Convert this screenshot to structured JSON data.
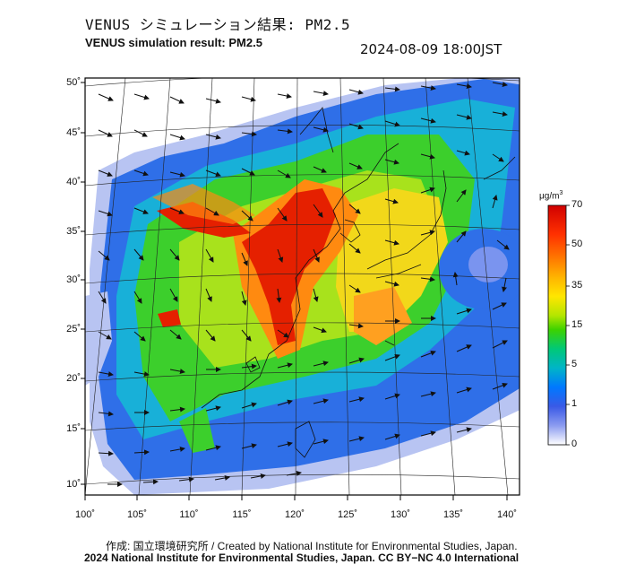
{
  "header": {
    "title_jp": "VENUS シミュレーション結果: PM2.5",
    "title_en": "VENUS simulation result: PM2.5",
    "timestamp": "2024-08-09 18:00JST"
  },
  "map": {
    "lat_labels": [
      "50˚",
      "45˚",
      "40˚",
      "35˚",
      "30˚",
      "25˚",
      "20˚",
      "15˚",
      "10˚"
    ],
    "lon_labels": [
      "100˚",
      "105˚",
      "110˚",
      "115˚",
      "120˚",
      "125˚",
      "130˚",
      "135˚",
      "140˚"
    ],
    "features": [
      "PM2.5 concentration field",
      "wind vectors",
      "coastlines",
      "lat/lon graticule"
    ]
  },
  "colorbar": {
    "unit_prefix": "μg/m",
    "unit_sup": "3",
    "ticks": [
      "70",
      "50",
      "35",
      "15",
      "5",
      "1",
      "0"
    ],
    "colors": [
      "#e10000",
      "#ff5a00",
      "#ffa500",
      "#ffd700",
      "#c8e600",
      "#5ad200",
      "#00c864",
      "#00b4b4",
      "#0080ff",
      "#2050dc",
      "#3c6cf0",
      "#aab4f0",
      "#ffffff"
    ]
  },
  "credits": {
    "line1": "作成: 国立環境研究所 / Created by National Institute for Environmental Studies, Japan.",
    "line2": "2024 National Institute for Environmental Studies, Japan. CC BY−NC 4.0 International"
  }
}
